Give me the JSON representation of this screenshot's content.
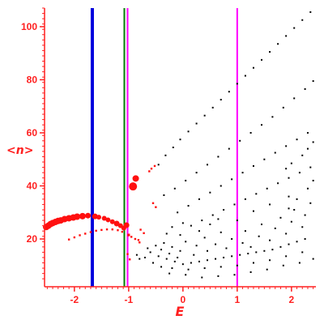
{
  "chart_data": {
    "type": "scatter",
    "xlabel": "E",
    "ylabel": "<n>",
    "xlim": [
      -2.55,
      2.45
    ],
    "ylim": [
      2,
      107
    ],
    "xticks": [
      -2,
      -1,
      0,
      1,
      2
    ],
    "xtick_labels": [
      "-2",
      "-1",
      "0",
      "1",
      "2"
    ],
    "yticks": [
      20,
      40,
      60,
      80,
      100
    ],
    "ytick_labels": [
      "20",
      "40",
      "60",
      "80",
      "100"
    ],
    "grid": false,
    "colors": {
      "axis": "#ff2020",
      "highlight_points": "#ff1010",
      "background_points": "#000000"
    },
    "vertical_lines": [
      {
        "x": -1.67,
        "color": "#0000dd"
      },
      {
        "x": -1.08,
        "color": "#008000"
      },
      {
        "x": -1.02,
        "color": "#ff00ff"
      },
      {
        "x": 1.0,
        "color": "#ff00ff"
      }
    ],
    "series": [
      {
        "color": "#ff1010",
        "points": [
          {
            "x": -2.52,
            "y": 24.5,
            "s": 4
          },
          {
            "x": -2.48,
            "y": 25.0,
            "s": 4
          },
          {
            "x": -2.44,
            "y": 25.6,
            "s": 4
          },
          {
            "x": -2.4,
            "y": 26.0,
            "s": 4
          },
          {
            "x": -2.35,
            "y": 26.4,
            "s": 4
          },
          {
            "x": -2.3,
            "y": 26.8,
            "s": 4
          },
          {
            "x": -2.25,
            "y": 27.0,
            "s": 4
          },
          {
            "x": -2.18,
            "y": 27.5,
            "s": 4
          },
          {
            "x": -2.1,
            "y": 27.8,
            "s": 4
          },
          {
            "x": -2.02,
            "y": 28.1,
            "s": 4
          },
          {
            "x": -1.95,
            "y": 28.4,
            "s": 4
          },
          {
            "x": -1.85,
            "y": 28.6,
            "s": 4
          },
          {
            "x": -1.75,
            "y": 28.8,
            "s": 3.5
          },
          {
            "x": -1.62,
            "y": 28.5,
            "s": 3.5
          },
          {
            "x": -1.55,
            "y": 28.2,
            "s": 3
          },
          {
            "x": -1.45,
            "y": 27.8,
            "s": 3
          },
          {
            "x": -1.38,
            "y": 27.2,
            "s": 3
          },
          {
            "x": -1.3,
            "y": 26.5,
            "s": 3
          },
          {
            "x": -1.22,
            "y": 25.8,
            "s": 3.5
          },
          {
            "x": -1.15,
            "y": 25.0,
            "s": 3
          },
          {
            "x": -1.09,
            "y": 24.1,
            "s": 3
          },
          {
            "x": -1.04,
            "y": 25.2,
            "s": 3.5
          },
          {
            "x": -0.92,
            "y": 39.8,
            "s": 5
          },
          {
            "x": -0.87,
            "y": 42.8,
            "s": 4
          },
          {
            "x": -2.1,
            "y": 19.8,
            "s": 1.5
          },
          {
            "x": -2.0,
            "y": 20.6,
            "s": 1.5
          },
          {
            "x": -1.9,
            "y": 21.4,
            "s": 1.5
          },
          {
            "x": -1.8,
            "y": 22.0,
            "s": 1.5
          },
          {
            "x": -1.7,
            "y": 22.6,
            "s": 1.5
          },
          {
            "x": -1.6,
            "y": 23.1,
            "s": 1.5
          },
          {
            "x": -1.5,
            "y": 23.4,
            "s": 1.5
          },
          {
            "x": -1.4,
            "y": 23.6,
            "s": 1.5
          },
          {
            "x": -1.3,
            "y": 23.6,
            "s": 1.5
          },
          {
            "x": -1.2,
            "y": 23.3,
            "s": 1.5
          },
          {
            "x": -1.12,
            "y": 22.7,
            "s": 1.5
          },
          {
            "x": -1.0,
            "y": 21.5,
            "s": 2
          },
          {
            "x": -0.95,
            "y": 20.8,
            "s": 1.5
          },
          {
            "x": -0.88,
            "y": 20.0,
            "s": 1.5
          },
          {
            "x": -0.8,
            "y": 18.7,
            "s": 1.5
          },
          {
            "x": -0.78,
            "y": 23.5,
            "s": 1.5
          },
          {
            "x": -0.72,
            "y": 22.2,
            "s": 1.5
          },
          {
            "x": -0.82,
            "y": 19.6,
            "s": 1.5
          },
          {
            "x": -1.02,
            "y": 14.3,
            "s": 1.5
          },
          {
            "x": -0.98,
            "y": 12.3,
            "s": 1.5
          },
          {
            "x": -0.55,
            "y": 33.5,
            "s": 1.5
          },
          {
            "x": -0.5,
            "y": 32.0,
            "s": 1.5
          },
          {
            "x": -0.62,
            "y": 45.5,
            "s": 1.5
          },
          {
            "x": -0.58,
            "y": 46.5,
            "s": 1.5
          },
          {
            "x": -0.52,
            "y": 47.5,
            "s": 1.5
          }
        ]
      },
      {
        "color": "#000000",
        "points": [
          {
            "x": -0.45,
            "y": 48.0
          },
          {
            "x": -0.32,
            "y": 51.5
          },
          {
            "x": -0.18,
            "y": 54.5
          },
          {
            "x": -0.05,
            "y": 57.5
          },
          {
            "x": 0.1,
            "y": 60.5
          },
          {
            "x": 0.25,
            "y": 63.5
          },
          {
            "x": 0.4,
            "y": 66.5
          },
          {
            "x": 0.55,
            "y": 69.5
          },
          {
            "x": 0.7,
            "y": 72.5
          },
          {
            "x": 0.85,
            "y": 75.5
          },
          {
            "x": 1.0,
            "y": 78.5
          },
          {
            "x": 1.15,
            "y": 81.5
          },
          {
            "x": 1.3,
            "y": 84.5
          },
          {
            "x": 1.45,
            "y": 87.5
          },
          {
            "x": 1.6,
            "y": 90.5
          },
          {
            "x": 1.75,
            "y": 93.5
          },
          {
            "x": 1.9,
            "y": 96.5
          },
          {
            "x": 2.05,
            "y": 99.5
          },
          {
            "x": 2.2,
            "y": 102.5
          },
          {
            "x": 2.35,
            "y": 105.5
          },
          {
            "x": -0.35,
            "y": 36.5
          },
          {
            "x": -0.15,
            "y": 39.0
          },
          {
            "x": 0.05,
            "y": 42.0
          },
          {
            "x": 0.25,
            "y": 45.0
          },
          {
            "x": 0.45,
            "y": 48.0
          },
          {
            "x": 0.65,
            "y": 51.0
          },
          {
            "x": 0.85,
            "y": 54.0
          },
          {
            "x": 1.05,
            "y": 57.0
          },
          {
            "x": 1.25,
            "y": 60.0
          },
          {
            "x": 1.45,
            "y": 63.0
          },
          {
            "x": 1.65,
            "y": 66.0
          },
          {
            "x": 1.85,
            "y": 69.5
          },
          {
            "x": 2.05,
            "y": 73.0
          },
          {
            "x": 2.25,
            "y": 76.5
          },
          {
            "x": 2.4,
            "y": 79.5
          },
          {
            "x": -0.1,
            "y": 30.0
          },
          {
            "x": 0.1,
            "y": 32.5
          },
          {
            "x": 0.3,
            "y": 35.0
          },
          {
            "x": 0.5,
            "y": 37.5
          },
          {
            "x": 0.7,
            "y": 40.0
          },
          {
            "x": 0.9,
            "y": 42.5
          },
          {
            "x": 1.1,
            "y": 45.0
          },
          {
            "x": 1.3,
            "y": 47.5
          },
          {
            "x": 1.5,
            "y": 50.0
          },
          {
            "x": 1.7,
            "y": 52.5
          },
          {
            "x": 1.9,
            "y": 55.0
          },
          {
            "x": 2.1,
            "y": 57.5
          },
          {
            "x": 2.3,
            "y": 60.0
          },
          {
            "x": 0.15,
            "y": 25.0
          },
          {
            "x": 0.35,
            "y": 27.0
          },
          {
            "x": 0.55,
            "y": 29.0
          },
          {
            "x": 0.75,
            "y": 31.0
          },
          {
            "x": 0.95,
            "y": 33.0
          },
          {
            "x": 1.15,
            "y": 35.0
          },
          {
            "x": 1.35,
            "y": 37.0
          },
          {
            "x": 1.55,
            "y": 39.0
          },
          {
            "x": 1.75,
            "y": 41.0
          },
          {
            "x": 1.95,
            "y": 43.0
          },
          {
            "x": 2.15,
            "y": 45.0
          },
          {
            "x": 2.35,
            "y": 47.0
          },
          {
            "x": -0.6,
            "y": 15.0
          },
          {
            "x": -0.45,
            "y": 13.5
          },
          {
            "x": -0.3,
            "y": 12.5
          },
          {
            "x": -0.15,
            "y": 11.5
          },
          {
            "x": 0.0,
            "y": 10.5
          },
          {
            "x": 0.15,
            "y": 11.0
          },
          {
            "x": 0.3,
            "y": 11.5
          },
          {
            "x": 0.45,
            "y": 12.0
          },
          {
            "x": 0.6,
            "y": 12.5
          },
          {
            "x": 0.75,
            "y": 13.0
          },
          {
            "x": 0.9,
            "y": 13.5
          },
          {
            "x": 1.05,
            "y": 14.0
          },
          {
            "x": 1.2,
            "y": 14.5
          },
          {
            "x": 1.35,
            "y": 15.0
          },
          {
            "x": 1.5,
            "y": 15.5
          },
          {
            "x": 1.65,
            "y": 16.0
          },
          {
            "x": 1.8,
            "y": 17.0
          },
          {
            "x": 1.95,
            "y": 18.0
          },
          {
            "x": 2.1,
            "y": 19.0
          },
          {
            "x": 2.25,
            "y": 20.0
          },
          {
            "x": -0.25,
            "y": 7.0
          },
          {
            "x": 0.05,
            "y": 6.5
          },
          {
            "x": 0.35,
            "y": 5.5
          },
          {
            "x": 0.65,
            "y": 6.0
          },
          {
            "x": 0.95,
            "y": 6.5
          },
          {
            "x": 1.25,
            "y": 7.5
          },
          {
            "x": 1.55,
            "y": 8.5
          },
          {
            "x": 1.85,
            "y": 10.0
          },
          {
            "x": 2.15,
            "y": 11.0
          },
          {
            "x": 2.4,
            "y": 12.5
          },
          {
            "x": -0.5,
            "y": 17.5
          },
          {
            "x": -0.4,
            "y": 16.0
          },
          {
            "x": -0.35,
            "y": 18.5
          },
          {
            "x": -0.25,
            "y": 14.5
          },
          {
            "x": -0.2,
            "y": 17.0
          },
          {
            "x": -0.1,
            "y": 13.0
          },
          {
            "x": -0.05,
            "y": 15.5
          },
          {
            "x": 0.05,
            "y": 19.0
          },
          {
            "x": 0.2,
            "y": 14.0
          },
          {
            "x": 0.25,
            "y": 17.5
          },
          {
            "x": 0.4,
            "y": 20.5
          },
          {
            "x": 0.45,
            "y": 15.5
          },
          {
            "x": 0.6,
            "y": 18.0
          },
          {
            "x": 0.7,
            "y": 22.5
          },
          {
            "x": 0.8,
            "y": 16.5
          },
          {
            "x": 0.9,
            "y": 20.0
          },
          {
            "x": 1.1,
            "y": 18.5
          },
          {
            "x": 1.15,
            "y": 23.0
          },
          {
            "x": 1.25,
            "y": 17.0
          },
          {
            "x": 1.4,
            "y": 21.0
          },
          {
            "x": 1.45,
            "y": 25.5
          },
          {
            "x": 1.6,
            "y": 19.5
          },
          {
            "x": 1.7,
            "y": 24.0
          },
          {
            "x": 1.8,
            "y": 28.0
          },
          {
            "x": 1.9,
            "y": 22.0
          },
          {
            "x": 2.0,
            "y": 26.5
          },
          {
            "x": 2.05,
            "y": 31.0
          },
          {
            "x": 2.2,
            "y": 24.5
          },
          {
            "x": 2.25,
            "y": 29.0
          },
          {
            "x": 2.35,
            "y": 33.5
          },
          {
            "x": -0.3,
            "y": 22.0
          },
          {
            "x": -0.2,
            "y": 24.5
          },
          {
            "x": -0.05,
            "y": 21.5
          },
          {
            "x": 0.0,
            "y": 26.0
          },
          {
            "x": 0.3,
            "y": 23.0
          },
          {
            "x": 0.5,
            "y": 25.5
          },
          {
            "x": 0.65,
            "y": 27.5
          },
          {
            "x": 1.0,
            "y": 27.0
          },
          {
            "x": 1.3,
            "y": 30.5
          },
          {
            "x": 1.6,
            "y": 33.0
          },
          {
            "x": 1.95,
            "y": 36.0
          },
          {
            "x": 2.3,
            "y": 39.0
          },
          {
            "x": 1.9,
            "y": 46.5
          },
          {
            "x": 2.0,
            "y": 48.5
          },
          {
            "x": 2.2,
            "y": 51.5
          },
          {
            "x": 2.3,
            "y": 54.0
          },
          {
            "x": 2.4,
            "y": 56.5
          },
          {
            "x": 1.95,
            "y": 31.5
          },
          {
            "x": 2.1,
            "y": 35.0
          },
          {
            "x": 2.4,
            "y": 42.0
          },
          {
            "x": -0.55,
            "y": 11.0
          },
          {
            "x": -0.4,
            "y": 9.5
          },
          {
            "x": -0.2,
            "y": 9.0
          },
          {
            "x": 0.1,
            "y": 8.5
          },
          {
            "x": 0.4,
            "y": 9.0
          },
          {
            "x": 0.7,
            "y": 9.5
          },
          {
            "x": 1.0,
            "y": 10.0
          },
          {
            "x": 1.3,
            "y": 11.0
          },
          {
            "x": 1.6,
            "y": 12.0
          },
          {
            "x": 1.9,
            "y": 13.5
          },
          {
            "x": 2.2,
            "y": 15.0
          },
          {
            "x": -0.7,
            "y": 13.0
          },
          {
            "x": -0.65,
            "y": 16.5
          },
          {
            "x": -0.8,
            "y": 12.5
          },
          {
            "x": -0.85,
            "y": 14.0
          }
        ]
      }
    ]
  }
}
